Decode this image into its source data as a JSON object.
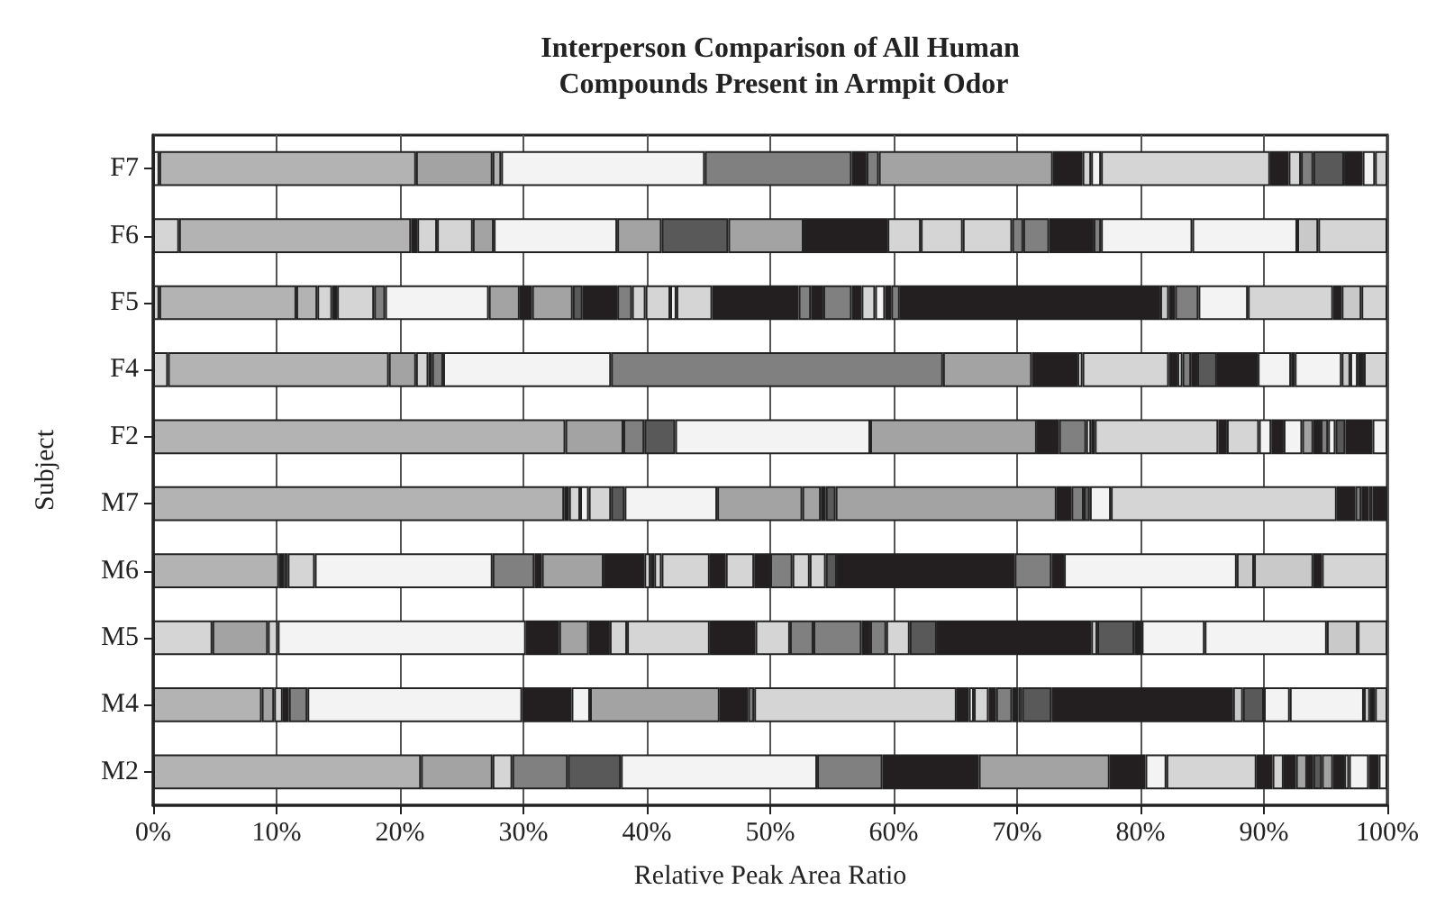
{
  "chart_data": {
    "type": "bar",
    "orientation": "horizontal",
    "stacked": true,
    "grid": "x",
    "title": "Interperson Comparison of All Human Compounds Present in Armpit Odor",
    "xlabel": "Relative Peak Area Ratio",
    "ylabel": "Subject",
    "categories": [
      "F7",
      "F6",
      "F5",
      "F4",
      "F2",
      "M7",
      "M6",
      "M5",
      "M4",
      "M2"
    ],
    "xlim": [
      0,
      100
    ],
    "xticks": [
      {
        "value": 0,
        "label": "0%"
      },
      {
        "value": 10,
        "label": "10%"
      },
      {
        "value": 20,
        "label": "20%"
      },
      {
        "value": 30,
        "label": "30%"
      },
      {
        "value": 40,
        "label": "40%"
      },
      {
        "value": 50,
        "label": "50%"
      },
      {
        "value": 60,
        "label": "60%"
      },
      {
        "value": 70,
        "label": "70%"
      },
      {
        "value": 80,
        "label": "80%"
      },
      {
        "value": 90,
        "label": "90%"
      },
      {
        "value": 100,
        "label": "100%"
      }
    ],
    "series": [
      {
        "values": [
          0.5,
          2.1,
          0.5,
          1.2,
          33.4,
          33.3,
          10.2,
          4.8,
          8.8,
          21.7
        ],
        "colors": [
          "#f3f3f3",
          "#d5d5d5",
          "#d5d5d5",
          "#d5d5d5",
          "#b3b3b3",
          "#b3b3b3",
          "#b3b3b3",
          "#d5d5d5",
          "#b3b3b3",
          "#b3b3b3"
        ]
      },
      {
        "values": [
          20.8,
          18.8,
          11.1,
          17.9,
          4.7,
          0.4,
          0.4,
          4.5,
          1.0,
          5.8
        ],
        "colors": [
          "#b3b3b3",
          "#b3b3b3",
          "#b3b3b3",
          "#b3b3b3",
          "#a3a3a3",
          "#231f20",
          "#231f20",
          "#a3a3a3",
          "#a3a3a3",
          "#a3a3a3"
        ]
      },
      {
        "values": [
          6.2,
          0.5,
          1.7,
          2.2,
          1.7,
          0.9,
          0.3,
          0.8,
          0.7,
          1.6
        ],
        "colors": [
          "#a3a3a3",
          "#231f20",
          "#b3b3b3",
          "#a3a3a3",
          "#808080",
          "#d5d5d5",
          "#f3f3f3",
          "#d5d5d5",
          "#d5d5d5",
          "#d5d5d5"
        ]
      },
      {
        "values": [
          0.7,
          1.6,
          1.2,
          1.0,
          2.5,
          0.7,
          2.2,
          20.1,
          0.5,
          4.5
        ],
        "colors": [
          "#b3b3b3",
          "#d5d5d5",
          "#d5d5d5",
          "#d5d5d5",
          "#595959",
          "#f3f3f3",
          "#d5d5d5",
          "#f3f3f3",
          "#231f20",
          "#808080"
        ]
      },
      {
        "values": [
          16.5,
          2.9,
          0.4,
          0.3,
          15.8,
          1.8,
          14.4,
          2.7,
          1.5,
          4.3
        ],
        "colors": [
          "#f3f3f3",
          "#d5d5d5",
          "#231f20",
          "#231f20",
          "#f3f3f3",
          "#d5d5d5",
          "#f3f3f3",
          "#231f20",
          "#808080",
          "#595959"
        ]
      },
      {
        "values": [
          11.9,
          1.7,
          3.0,
          0.9,
          13.5,
          1.1,
          3.4,
          2.4,
          17.4,
          15.9
        ],
        "colors": [
          "#808080",
          "#a3a3a3",
          "#d5d5d5",
          "#808080",
          "#a3a3a3",
          "#595959",
          "#808080",
          "#a3a3a3",
          "#f3f3f3",
          "#f3f3f3"
        ]
      },
      {
        "values": [
          1.2,
          10.0,
          0.9,
          13.6,
          1.8,
          7.5,
          0.6,
          1.7,
          4.0,
          5.3
        ],
        "colors": [
          "#231f20",
          "#f3f3f3",
          "#808080",
          "#f3f3f3",
          "#231f20",
          "#f3f3f3",
          "#231f20",
          "#231f20",
          "#231f20",
          "#808080"
        ]
      },
      {
        "values": [
          1.0,
          3.6,
          8.4,
          26.9,
          2.2,
          6.9,
          5.0,
          1.4,
          1.5,
          7.8
        ],
        "colors": [
          "#808080",
          "#a3a3a3",
          "#f3f3f3",
          "#808080",
          "#808080",
          "#a3a3a3",
          "#a3a3a3",
          "#d5d5d5",
          "#f3f3f3",
          "#231f20"
        ]
      },
      {
        "values": [
          14.1,
          5.4,
          2.5,
          7.2,
          0.4,
          1.5,
          3.3,
          6.7,
          10.5,
          10.6
        ],
        "colors": [
          "#a3a3a3",
          "#595959",
          "#a3a3a3",
          "#a3a3a3",
          "#f3f3f3",
          "#a3a3a3",
          "#231f20",
          "#d5d5d5",
          "#a3a3a3",
          "#a3a3a3"
        ]
      },
      {
        "values": [
          2.4,
          6.1,
          1.0,
          3.7,
          0.3,
          0.4,
          0.5,
          3.7,
          2.3,
          2.9
        ],
        "colors": [
          "#231f20",
          "#a3a3a3",
          "#231f20",
          "#231f20",
          "#231f20",
          "#231f20",
          "#d5d5d5",
          "#231f20",
          "#231f20",
          "#231f20"
        ]
      },
      {
        "values": [
          0.7,
          6.8,
          3.3,
          0.4,
          10.0,
          0.8,
          0.3,
          2.8,
          0.5,
          1.7
        ],
        "colors": [
          "#d5d5d5",
          "#231f20",
          "#a3a3a3",
          "#f3f3f3",
          "#d5d5d5",
          "#595959",
          "#231f20",
          "#d5d5d5",
          "#808080",
          "#f3f3f3"
        ]
      },
      {
        "values": [
          0.8,
          2.7,
          0.8,
          7.0,
          0.7,
          17.9,
          0.6,
          1.9,
          16.4,
          7.3
        ],
        "colors": [
          "#f3f3f3",
          "#d5d5d5",
          "#595959",
          "#d5d5d5",
          "#231f20",
          "#a3a3a3",
          "#d5d5d5",
          "#808080",
          "#d5d5d5",
          "#d5d5d5"
        ]
      },
      {
        "values": [
          13.7,
          3.4,
          2.8,
          0.7,
          2.6,
          1.2,
          3.9,
          3.9,
          1.0,
          1.3
        ],
        "colors": [
          "#d5d5d5",
          "#d5d5d5",
          "#231f20",
          "#231f20",
          "#d5d5d5",
          "#231f20",
          "#d5d5d5",
          "#808080",
          "#231f20",
          "#231f20"
        ]
      },
      {
        "values": [
          1.5,
          4.0,
          1.2,
          0.4,
          1.0,
          1.0,
          1.3,
          0.7,
          0.4,
          0.9
        ],
        "colors": [
          "#231f20",
          "#d5d5d5",
          "#808080",
          "#f3f3f3",
          "#f3f3f3",
          "#808080",
          "#231f20",
          "#231f20",
          "#f3f3f3",
          "#d5d5d5"
        ]
      },
      {
        "values": [
          1.0,
          0.9,
          1.1,
          0.7,
          1.0,
          0.5,
          2.3,
          1.3,
          1.2,
          1.0
        ],
        "colors": [
          "#d5d5d5",
          "#808080",
          "#d5d5d5",
          "#808080",
          "#231f20",
          "#595959",
          "#d5d5d5",
          "#808080",
          "#d5d5d5",
          "#231f20"
        ]
      },
      {
        "values": [
          1.0,
          2.1,
          2.0,
          0.5,
          1.5,
          1.7,
          1.3,
          1.9,
          0.6,
          0.9
        ],
        "colors": [
          "#808080",
          "#808080",
          "#d5d5d5",
          "#231f20",
          "#f3f3f3",
          "#f3f3f3",
          "#231f20",
          "#d5d5d5",
          "#231f20",
          "#a3a3a3"
        ]
      },
      {
        "values": [
          2.5,
          3.6,
          0.5,
          1.6,
          0.9,
          18.3,
          1.8,
          2.2,
          1.3,
          0.5
        ],
        "colors": [
          "#595959",
          "#231f20",
          "#f3f3f3",
          "#595959",
          "#a3a3a3",
          "#d5d5d5",
          "#808080",
          "#595959",
          "#808080",
          "#231f20"
        ]
      },
      {
        "values": [
          1.5,
          0.6,
          2.9,
          3.3,
          0.6,
          1.5,
          1.4,
          12.5,
          0.5,
          0.7
        ],
        "colors": [
          "#231f20",
          "#808080",
          "#d5d5d5",
          "#231f20",
          "#231f20",
          "#231f20",
          "#d5d5d5",
          "#231f20",
          "#231f20",
          "#595959"
        ]
      },
      {
        "values": [
          1.0,
          7.4,
          7.0,
          2.7,
          0.6,
          0.5,
          1.3,
          0.5,
          0.3,
          0.9
        ],
        "colors": [
          "#f3f3f3",
          "#f3f3f3",
          "#231f20",
          "#f3f3f3",
          "#808080",
          "#808080",
          "#d5d5d5",
          "#c9c9c9",
          "#f3f3f3",
          "#a3a3a3"
        ]
      },
      {
        "values": [
          1.0,
          8.5,
          1.0,
          0.3,
          0.6,
          0.6,
          0.9,
          3.0,
          2.4,
          0.9
        ],
        "colors": [
          "#d5d5d5",
          "#f3f3f3",
          "#808080",
          "#231f20",
          "#f3f3f3",
          "#231f20",
          "#595959",
          "#595959",
          "#595959",
          "#231f20"
        ]
      },
      {
        "values": [
          null,
          1.7,
          1.0,
          3.8,
          0.8,
          0.3,
          14.4,
          0.6,
          14.7,
          0.4
        ],
        "colors": [
          null,
          "#c9c9c9",
          "#231f20",
          "#f3f3f3",
          "#595959",
          "#808080",
          "#231f20",
          "#231f20",
          "#231f20",
          "#c9c9c9"
        ]
      },
      {
        "values": [
          null,
          5.6,
          2.3,
          0.7,
          2.2,
          1.2,
          3.0,
          5.1,
          0.8,
          1.6
        ],
        "colors": [
          null,
          "#d5d5d5",
          "#808080",
          "#c9c9c9",
          "#231f20",
          "#231f20",
          "#808080",
          "#f3f3f3",
          "#c9c9c9",
          "#f3f3f3"
        ]
      },
      {
        "values": [
          null,
          null,
          0.8,
          0.6,
          1.2,
          null,
          1.0,
          9.9,
          1.7,
          0.8
        ],
        "colors": [
          null,
          null,
          "#231f20",
          "#f3f3f3",
          "#f3f3f3",
          null,
          "#231f20",
          "#f3f3f3",
          "#595959",
          "#231f20"
        ]
      },
      {
        "values": [
          null,
          null,
          1.1,
          0.5,
          null,
          null,
          14.0,
          2.5,
          2.1,
          0.7
        ],
        "colors": [
          null,
          null,
          "#d5d5d5",
          "#231f20",
          null,
          null,
          "#f3f3f3",
          "#c9c9c9",
          "#f3f3f3",
          "#f3f3f3"
        ]
      },
      {
        "values": [
          null,
          null,
          0.8,
          1.9,
          null,
          null,
          1.4,
          2.4,
          6.0,
          null
        ],
        "colors": [
          null,
          null,
          "#f3f3f3",
          "#d5d5d5",
          null,
          null,
          "#c9c9c9",
          "#d5d5d5",
          "#f3f3f3",
          null
        ]
      },
      {
        "values": [
          null,
          null,
          0.5,
          null,
          null,
          null,
          4.8,
          null,
          0.5,
          null
        ],
        "colors": [
          null,
          null,
          "#231f20",
          null,
          null,
          null,
          "#c9c9c9",
          null,
          "#c9c9c9",
          null
        ]
      },
      {
        "values": [
          null,
          null,
          0.7,
          null,
          null,
          null,
          0.7,
          null,
          0.4,
          null
        ],
        "colors": [
          null,
          null,
          "#808080",
          null,
          null,
          null,
          "#231f20",
          null,
          "#231f20",
          null
        ]
      },
      {
        "values": [
          null,
          null,
          21.1,
          null,
          null,
          null,
          5.3,
          null,
          1.0,
          null
        ],
        "colors": [
          null,
          null,
          "#231f20",
          null,
          null,
          null,
          "#d5d5d5",
          null,
          "#d5d5d5",
          null
        ]
      },
      {
        "values": [
          null,
          null,
          0.7,
          null,
          null,
          null,
          null,
          null,
          null,
          null
        ],
        "colors": [
          null,
          null,
          "#c9c9c9",
          null,
          null,
          null,
          null,
          null,
          null,
          null
        ]
      },
      {
        "values": [
          null,
          null,
          0.5,
          null,
          null,
          null,
          null,
          null,
          null,
          null
        ],
        "colors": [
          null,
          null,
          "#231f20",
          null,
          null,
          null,
          null,
          null,
          null,
          null
        ]
      },
      {
        "values": [
          null,
          null,
          1.9,
          null,
          null,
          null,
          null,
          null,
          null,
          null
        ],
        "colors": [
          null,
          null,
          "#808080",
          null,
          null,
          null,
          null,
          null,
          null,
          null
        ]
      },
      {
        "values": [
          null,
          null,
          4.0,
          null,
          null,
          null,
          null,
          null,
          null,
          null
        ],
        "colors": [
          null,
          null,
          "#f3f3f3",
          null,
          null,
          null,
          null,
          null,
          null,
          null
        ]
      },
      {
        "values": [
          null,
          null,
          6.9,
          null,
          null,
          null,
          null,
          null,
          null,
          null
        ],
        "colors": [
          null,
          null,
          "#d5d5d5",
          null,
          null,
          null,
          null,
          null,
          null,
          null
        ]
      },
      {
        "values": [
          null,
          null,
          0.7,
          null,
          null,
          null,
          null,
          null,
          null,
          null
        ],
        "colors": [
          null,
          null,
          "#231f20",
          null,
          null,
          null,
          null,
          null,
          null,
          null
        ]
      },
      {
        "values": [
          null,
          null,
          1.6,
          null,
          null,
          null,
          null,
          null,
          null,
          null
        ],
        "colors": [
          null,
          null,
          "#c9c9c9",
          null,
          null,
          null,
          null,
          null,
          null,
          null
        ]
      },
      {
        "values": [
          null,
          null,
          2.1,
          null,
          null,
          null,
          null,
          null,
          null,
          null
        ],
        "colors": [
          null,
          null,
          "#d5d5d5",
          null,
          null,
          null,
          null,
          null,
          null,
          null
        ]
      }
    ]
  }
}
